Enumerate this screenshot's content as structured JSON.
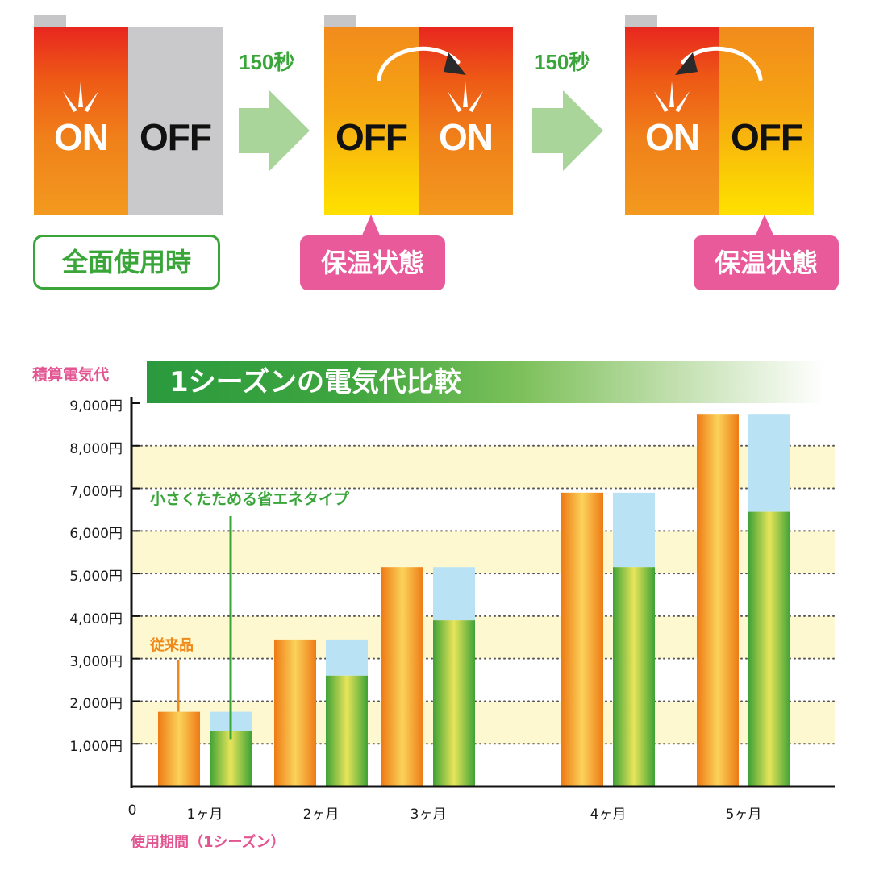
{
  "diagram": {
    "panels": [
      {
        "left_text": "ON",
        "right_text": "OFF"
      },
      {
        "left_text": "OFF",
        "right_text": "ON"
      },
      {
        "left_text": "ON",
        "right_text": "OFF"
      }
    ],
    "interval_labels": [
      "150秒",
      "150秒"
    ],
    "state_labels": {
      "full": "全面使用時",
      "keep_warm_1": "保温状態",
      "keep_warm_2": "保温状態"
    }
  },
  "chart_data": {
    "type": "bar",
    "title": "1シーズンの電気代比較",
    "ylabel": "積算電気代",
    "xlabel": "使用期間（1シーズン）",
    "origin_label": "0",
    "categories": [
      "1ヶ月",
      "2ヶ月",
      "3ヶ月",
      "4ヶ月",
      "5ヶ月"
    ],
    "ylim": [
      0,
      9000
    ],
    "yticks": [
      "1,000円",
      "2,000円",
      "3,000円",
      "4,000円",
      "5,000円",
      "6,000円",
      "7,000円",
      "8,000円",
      "9,000円"
    ],
    "series": [
      {
        "name": "従来品",
        "values": [
          1750,
          3450,
          5150,
          6900,
          8750
        ]
      },
      {
        "name": "小さくたためる省エネタイプ",
        "values": [
          1300,
          2600,
          3900,
          5150,
          6450
        ]
      }
    ],
    "savings_overlay_values": [
      1750,
      3450,
      5150,
      6900,
      8750
    ],
    "grid": true,
    "colors": {
      "conventional": "#f08a1a",
      "eco": "#5bb534",
      "savings": "#b9e3f5",
      "band": "#fdf8cf",
      "axis_label": "#e25591"
    }
  }
}
